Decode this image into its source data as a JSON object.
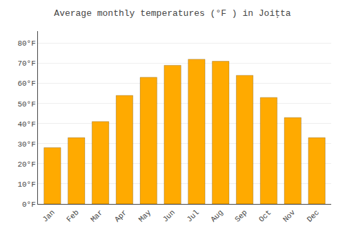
{
  "chart_data": {
    "type": "bar",
    "title": "Average monthly temperatures (°F ) in Joiţta",
    "categories": [
      "Jan",
      "Feb",
      "Mar",
      "Apr",
      "May",
      "Jun",
      "Jul",
      "Aug",
      "Sep",
      "Oct",
      "Nov",
      "Dec"
    ],
    "values": [
      28,
      33,
      41,
      54,
      63,
      69,
      72,
      71,
      64,
      53,
      43,
      33
    ],
    "color": "#FFAA00",
    "ylim": [
      0,
      86
    ],
    "yticks": [
      {
        "value": 0,
        "label": "0°F"
      },
      {
        "value": 10,
        "label": "10°F"
      },
      {
        "value": 20,
        "label": "20°F"
      },
      {
        "value": 30,
        "label": "30°F"
      },
      {
        "value": 40,
        "label": "40°F"
      },
      {
        "value": 50,
        "label": "50°F"
      },
      {
        "value": 60,
        "label": "60°F"
      },
      {
        "value": 70,
        "label": "70°F"
      },
      {
        "value": 80,
        "label": "80°F"
      }
    ],
    "grid": true
  }
}
